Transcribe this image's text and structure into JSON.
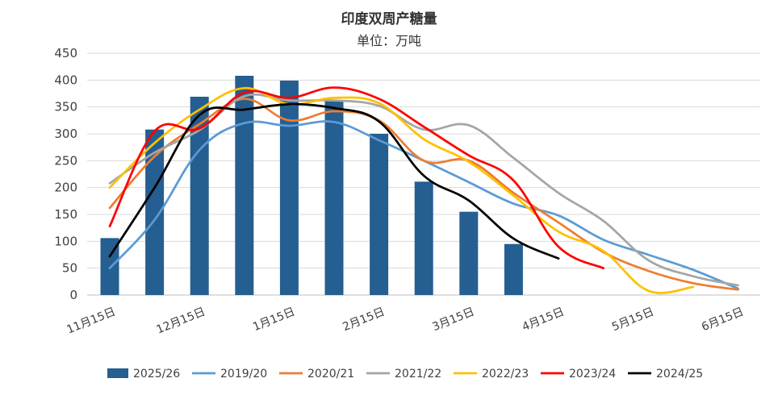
{
  "chart_data": {
    "type": "bar+line",
    "title": "印度双周产糖量",
    "subtitle": "单位：万吨",
    "ylim": [
      0,
      450
    ],
    "yticks": [
      0,
      50,
      100,
      150,
      200,
      250,
      300,
      350,
      400,
      450
    ],
    "x_labels": [
      "11月15日",
      "12月15日",
      "1月15日",
      "2月15日",
      "3月15日",
      "4月15日",
      "5月15日",
      "6月15日"
    ],
    "grid": true,
    "legend_position": "bottom",
    "bar_series": {
      "name": "2025/26",
      "color": "#255e91",
      "values": [
        106,
        308,
        369,
        408,
        399,
        361,
        300,
        211,
        155,
        95
      ]
    },
    "line_series": [
      {
        "name": "2019/20",
        "color": "#5b9bd5",
        "values": [
          50,
          140,
          270,
          320,
          315,
          322,
          288,
          250,
          210,
          170,
          148,
          103,
          75,
          47,
          12
        ]
      },
      {
        "name": "2020/21",
        "color": "#ed7d31",
        "values": [
          162,
          258,
          318,
          365,
          325,
          342,
          325,
          250,
          250,
          190,
          135,
          80,
          45,
          22,
          10
        ]
      },
      {
        "name": "2021/22",
        "color": "#a5a5a5",
        "values": [
          208,
          265,
          307,
          370,
          362,
          362,
          352,
          308,
          316,
          255,
          190,
          138,
          65,
          35,
          18
        ]
      },
      {
        "name": "2022/23",
        "color": "#ffc000",
        "values": [
          200,
          283,
          345,
          385,
          355,
          367,
          357,
          290,
          248,
          185,
          118,
          82,
          8,
          15
        ]
      },
      {
        "name": "2023/24",
        "color": "#ff0000",
        "values": [
          128,
          305,
          310,
          377,
          367,
          386,
          365,
          313,
          260,
          213,
          90,
          50
        ]
      },
      {
        "name": "2024/25",
        "color": "#000000",
        "values": [
          72,
          200,
          335,
          345,
          355,
          348,
          323,
          222,
          176,
          105,
          68
        ]
      }
    ]
  }
}
